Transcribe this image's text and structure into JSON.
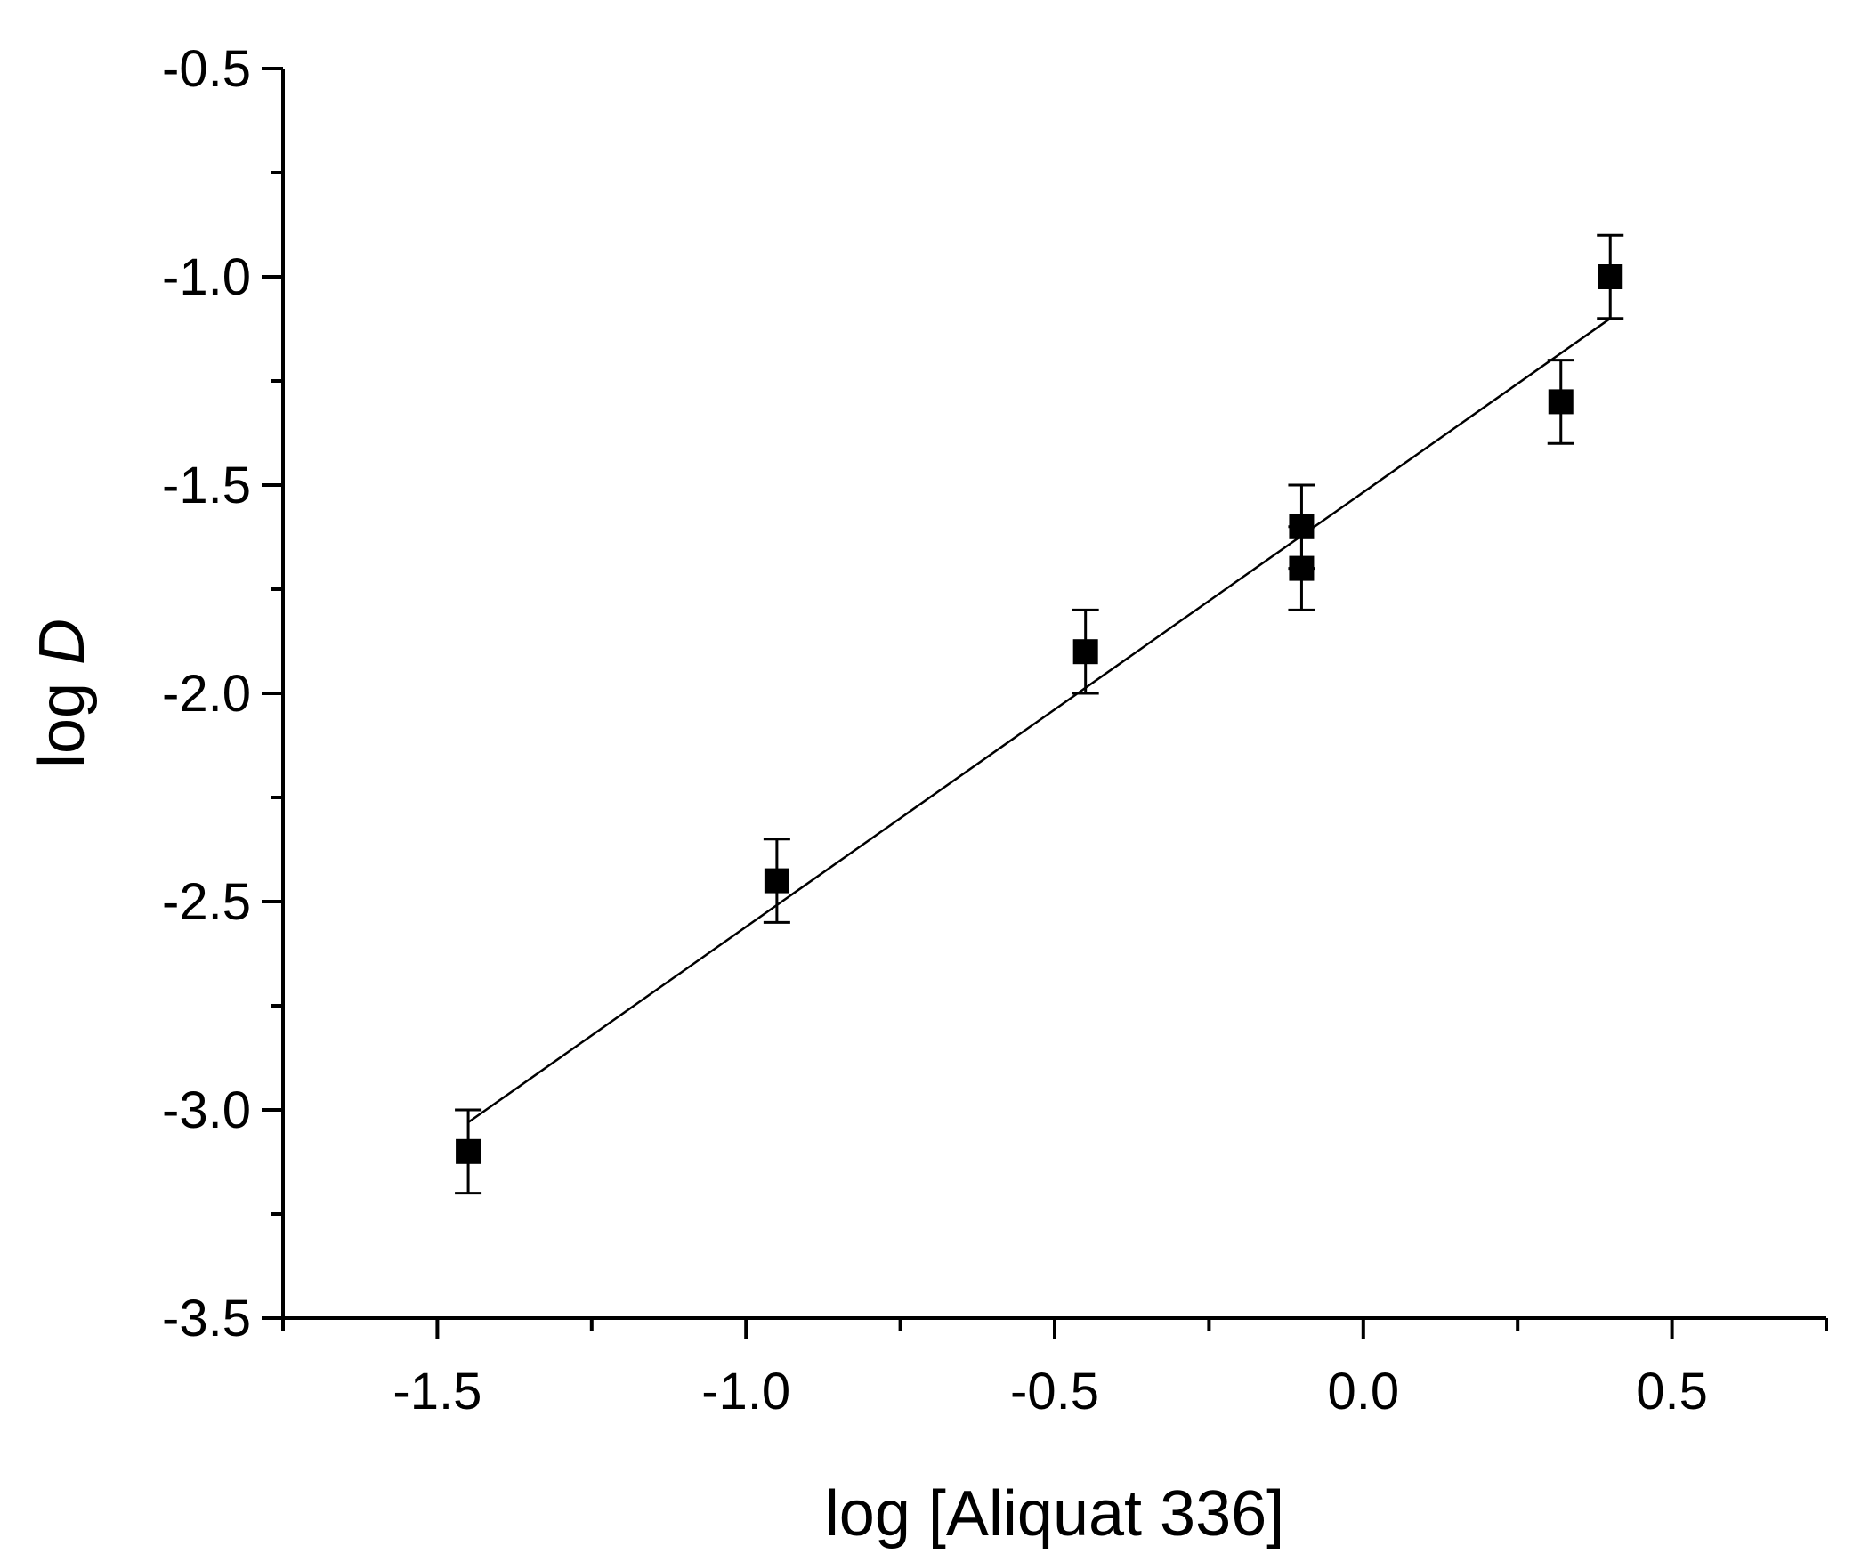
{
  "chart_data": {
    "type": "scatter",
    "title": "",
    "xlabel": "log [Aliquat 336]",
    "ylabel_prefix": "log ",
    "ylabel_var": "D",
    "xlim": [
      -1.75,
      0.75
    ],
    "ylim": [
      -3.5,
      -0.5
    ],
    "x_ticks": [
      -1.5,
      -1.0,
      -0.5,
      0.0,
      0.5
    ],
    "x_tick_labels": [
      "-1.5",
      "-1.0",
      "-0.5",
      "0.0",
      "0.5"
    ],
    "x_minor_ticks": [
      -1.75,
      -1.25,
      -0.75,
      -0.25,
      0.25,
      0.75
    ],
    "y_ticks": [
      -3.5,
      -3.0,
      -2.5,
      -2.0,
      -1.5,
      -1.0,
      -0.5
    ],
    "y_tick_labels": [
      "-3.5",
      "-3.0",
      "-2.5",
      "-2.0",
      "-1.5",
      "-1.0",
      "-0.5"
    ],
    "y_minor_ticks": [
      -3.25,
      -2.75,
      -2.25,
      -1.75,
      -1.25,
      -0.75
    ],
    "grid": false,
    "series": [
      {
        "points": [
          {
            "x": -1.45,
            "y": -3.1,
            "err": 0.1
          },
          {
            "x": -0.95,
            "y": -2.45,
            "err": 0.1
          },
          {
            "x": -0.45,
            "y": -1.9,
            "err": 0.1
          },
          {
            "x": -0.1,
            "y": -1.6,
            "err": 0.1
          },
          {
            "x": -0.1,
            "y": -1.7,
            "err": 0.1
          },
          {
            "x": 0.32,
            "y": -1.3,
            "err": 0.1
          },
          {
            "x": 0.4,
            "y": -1.0,
            "err": 0.1
          }
        ]
      }
    ],
    "fit_line": {
      "x": [
        -1.45,
        0.4
      ],
      "y": [
        -3.03,
        -1.1
      ]
    },
    "marker_color": "#000000",
    "line_color": "#000000"
  }
}
